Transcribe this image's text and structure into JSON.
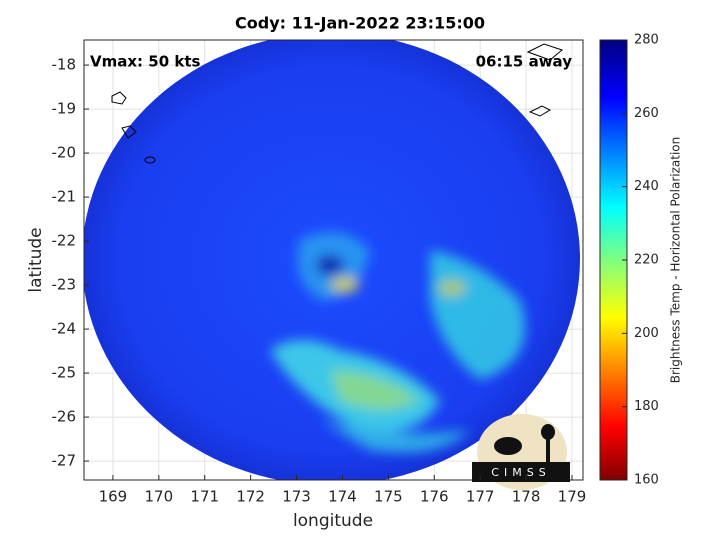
{
  "chart_data": {
    "type": "map",
    "title": "Cody: 11-Jan-2022 23:15:00",
    "annotations": [
      "Vmax: 50 kts",
      "06:15 away"
    ],
    "xlabel": "longitude",
    "ylabel": "latitude",
    "xlim": [
      168.37,
      179.24
    ],
    "ylim": [
      -27.43,
      -17.43
    ],
    "xticks": [
      169,
      170,
      171,
      172,
      173,
      174,
      175,
      176,
      177,
      178,
      179
    ],
    "yticks": [
      -27,
      -26,
      -25,
      -24,
      -23,
      -22,
      -21,
      -20,
      -19,
      -18
    ],
    "grid": true,
    "colorbar": {
      "label": "Brightness Temp - Horizontal Polarization",
      "lim": [
        160,
        280
      ],
      "ticks": [
        160,
        180,
        200,
        220,
        240,
        260,
        280
      ]
    }
  },
  "logo": "CIMSS"
}
